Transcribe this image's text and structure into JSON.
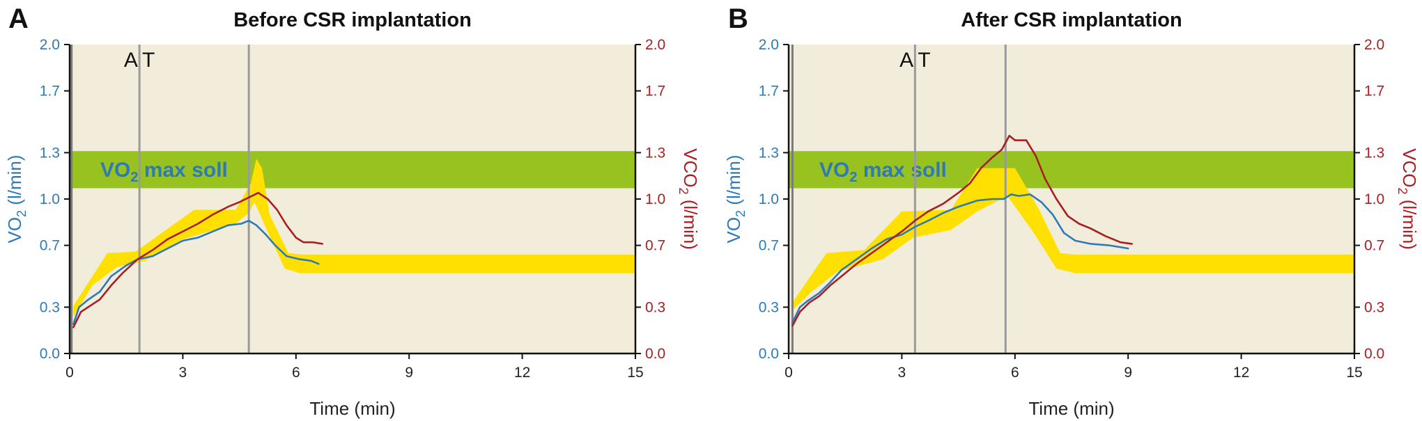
{
  "colors": {
    "plot_bg": "#f1edda",
    "vo2_line": "#2e7ab8",
    "vco2_line": "#a81e22",
    "predicted_band": "#ffe000",
    "vo2max_band": "#98c21f",
    "threshold_line": "#9a9a9a",
    "axis": "#111111"
  },
  "chart_data": [
    {
      "type": "line",
      "panel_letter": "A",
      "title": "Before CSR implantation",
      "xlabel": "Time (min)",
      "ylabel_left": {
        "base": "VO",
        "sub": "2",
        "rest": " (l/min)"
      },
      "ylabel_right": {
        "base": "VCO",
        "sub": "2",
        "rest": " (l/min)"
      },
      "xlim": [
        0,
        15
      ],
      "ylim": [
        0,
        2.0
      ],
      "x_ticks": [
        0,
        3,
        6,
        9,
        12,
        15
      ],
      "y_ticks": [
        0.0,
        0.3,
        0.7,
        1.0,
        1.3,
        1.7,
        2.0
      ],
      "y_tick_labels": [
        "0.0",
        "0.3",
        "0.7",
        "1.0",
        "1.3",
        "1.7",
        "2.0"
      ],
      "grid": false,
      "vo2max_band": {
        "label_base": "VO",
        "label_sub": "2",
        "label_rest": " max soll",
        "y_range": [
          1.07,
          1.31
        ]
      },
      "threshold_label": "A T",
      "threshold_lines_x": [
        0.05,
        1.85,
        4.75
      ],
      "predicted_band": {
        "upper": [
          [
            0.1,
            0.31
          ],
          [
            1.0,
            0.65
          ],
          [
            1.75,
            0.66
          ],
          [
            3.3,
            0.93
          ],
          [
            4.4,
            0.93
          ],
          [
            4.8,
            1.1
          ],
          [
            4.95,
            1.26
          ],
          [
            5.1,
            1.2
          ],
          [
            5.3,
            0.9
          ],
          [
            5.8,
            0.65
          ],
          [
            6.2,
            0.64
          ],
          [
            15,
            0.64
          ]
        ],
        "lower": [
          [
            0.1,
            0.24
          ],
          [
            0.6,
            0.44
          ],
          [
            1.25,
            0.56
          ],
          [
            2.0,
            0.6
          ],
          [
            3.0,
            0.74
          ],
          [
            4.4,
            0.84
          ],
          [
            4.75,
            0.91
          ],
          [
            4.9,
            0.98
          ],
          [
            5.3,
            0.76
          ],
          [
            5.7,
            0.55
          ],
          [
            6.1,
            0.52
          ],
          [
            15,
            0.52
          ]
        ]
      },
      "series": [
        {
          "name": "VO2",
          "axis": "left",
          "points": [
            [
              0.1,
              0.19
            ],
            [
              0.25,
              0.3
            ],
            [
              0.5,
              0.35
            ],
            [
              0.8,
              0.4
            ],
            [
              1.1,
              0.5
            ],
            [
              1.5,
              0.57
            ],
            [
              1.8,
              0.61
            ],
            [
              2.2,
              0.63
            ],
            [
              2.6,
              0.68
            ],
            [
              3.0,
              0.73
            ],
            [
              3.4,
              0.75
            ],
            [
              3.8,
              0.79
            ],
            [
              4.2,
              0.83
            ],
            [
              4.55,
              0.84
            ],
            [
              4.75,
              0.86
            ],
            [
              4.95,
              0.83
            ],
            [
              5.2,
              0.77
            ],
            [
              5.45,
              0.7
            ],
            [
              5.75,
              0.63
            ],
            [
              6.1,
              0.61
            ],
            [
              6.4,
              0.6
            ],
            [
              6.6,
              0.58
            ]
          ]
        },
        {
          "name": "VCO2",
          "axis": "right",
          "points": [
            [
              0.1,
              0.17
            ],
            [
              0.3,
              0.27
            ],
            [
              0.55,
              0.31
            ],
            [
              0.8,
              0.35
            ],
            [
              1.1,
              0.44
            ],
            [
              1.4,
              0.52
            ],
            [
              1.8,
              0.61
            ],
            [
              2.2,
              0.67
            ],
            [
              2.6,
              0.74
            ],
            [
              3.0,
              0.79
            ],
            [
              3.4,
              0.84
            ],
            [
              3.8,
              0.9
            ],
            [
              4.2,
              0.95
            ],
            [
              4.5,
              0.98
            ],
            [
              4.75,
              1.01
            ],
            [
              5.0,
              1.04
            ],
            [
              5.25,
              1.0
            ],
            [
              5.5,
              0.93
            ],
            [
              5.75,
              0.83
            ],
            [
              6.0,
              0.75
            ],
            [
              6.2,
              0.72
            ],
            [
              6.45,
              0.72
            ],
            [
              6.7,
              0.71
            ]
          ]
        }
      ]
    },
    {
      "type": "line",
      "panel_letter": "B",
      "title": "After CSR implantation",
      "xlabel": "Time (min)",
      "ylabel_left": {
        "base": "VO",
        "sub": "2",
        "rest": " (l/min)"
      },
      "ylabel_right": {
        "base": "VCO",
        "sub": "2",
        "rest": " (l/min)"
      },
      "xlim": [
        0,
        15
      ],
      "ylim": [
        0,
        2.0
      ],
      "x_ticks": [
        0,
        3,
        6,
        9,
        12,
        15
      ],
      "y_ticks": [
        0.0,
        0.3,
        0.7,
        1.0,
        1.3,
        1.7,
        2.0
      ],
      "y_tick_labels": [
        "0.0",
        "0.3",
        "0.7",
        "1.0",
        "1.3",
        "1.7",
        "2.0"
      ],
      "grid": false,
      "vo2max_band": {
        "label_base": "VO",
        "label_sub": "2",
        "label_rest": " max soll",
        "y_range": [
          1.07,
          1.31
        ]
      },
      "threshold_label": "A T",
      "threshold_lines_x": [
        0.1,
        3.35,
        5.75
      ],
      "predicted_band": {
        "upper": [
          [
            0.1,
            0.33
          ],
          [
            1.0,
            0.65
          ],
          [
            2.0,
            0.67
          ],
          [
            3.0,
            0.92
          ],
          [
            4.3,
            0.93
          ],
          [
            5.0,
            1.2
          ],
          [
            6.0,
            1.2
          ],
          [
            6.6,
            0.95
          ],
          [
            7.2,
            0.65
          ],
          [
            7.6,
            0.64
          ],
          [
            15,
            0.64
          ]
        ],
        "lower": [
          [
            0.1,
            0.28
          ],
          [
            0.6,
            0.4
          ],
          [
            1.3,
            0.53
          ],
          [
            2.5,
            0.61
          ],
          [
            3.3,
            0.75
          ],
          [
            4.3,
            0.8
          ],
          [
            5.0,
            0.92
          ],
          [
            5.8,
            1.02
          ],
          [
            6.5,
            0.78
          ],
          [
            7.1,
            0.55
          ],
          [
            7.6,
            0.52
          ],
          [
            15,
            0.52
          ]
        ]
      },
      "series": [
        {
          "name": "VO2",
          "axis": "left",
          "points": [
            [
              0.1,
              0.2
            ],
            [
              0.3,
              0.3
            ],
            [
              0.5,
              0.34
            ],
            [
              0.8,
              0.39
            ],
            [
              1.1,
              0.46
            ],
            [
              1.4,
              0.54
            ],
            [
              1.8,
              0.61
            ],
            [
              2.2,
              0.68
            ],
            [
              2.6,
              0.74
            ],
            [
              3.0,
              0.77
            ],
            [
              3.35,
              0.82
            ],
            [
              3.7,
              0.86
            ],
            [
              4.1,
              0.91
            ],
            [
              4.5,
              0.95
            ],
            [
              5.0,
              0.99
            ],
            [
              5.4,
              1.0
            ],
            [
              5.7,
              1.0
            ],
            [
              5.9,
              1.03
            ],
            [
              6.1,
              1.02
            ],
            [
              6.4,
              1.03
            ],
            [
              6.7,
              0.98
            ],
            [
              7.0,
              0.9
            ],
            [
              7.3,
              0.78
            ],
            [
              7.6,
              0.73
            ],
            [
              8.0,
              0.71
            ],
            [
              8.5,
              0.7
            ],
            [
              9.0,
              0.68
            ]
          ]
        },
        {
          "name": "VCO2",
          "axis": "right",
          "points": [
            [
              0.1,
              0.18
            ],
            [
              0.3,
              0.27
            ],
            [
              0.55,
              0.33
            ],
            [
              0.8,
              0.37
            ],
            [
              1.1,
              0.44
            ],
            [
              1.4,
              0.5
            ],
            [
              1.8,
              0.58
            ],
            [
              2.2,
              0.65
            ],
            [
              2.6,
              0.72
            ],
            [
              3.0,
              0.79
            ],
            [
              3.35,
              0.86
            ],
            [
              3.7,
              0.92
            ],
            [
              4.1,
              0.97
            ],
            [
              4.5,
              1.04
            ],
            [
              4.8,
              1.1
            ],
            [
              5.1,
              1.2
            ],
            [
              5.4,
              1.27
            ],
            [
              5.65,
              1.32
            ],
            [
              5.85,
              1.41
            ],
            [
              6.0,
              1.38
            ],
            [
              6.3,
              1.38
            ],
            [
              6.55,
              1.28
            ],
            [
              6.8,
              1.13
            ],
            [
              7.1,
              1.0
            ],
            [
              7.4,
              0.89
            ],
            [
              7.7,
              0.84
            ],
            [
              8.0,
              0.81
            ],
            [
              8.4,
              0.76
            ],
            [
              8.8,
              0.72
            ],
            [
              9.1,
              0.71
            ]
          ]
        }
      ]
    }
  ]
}
